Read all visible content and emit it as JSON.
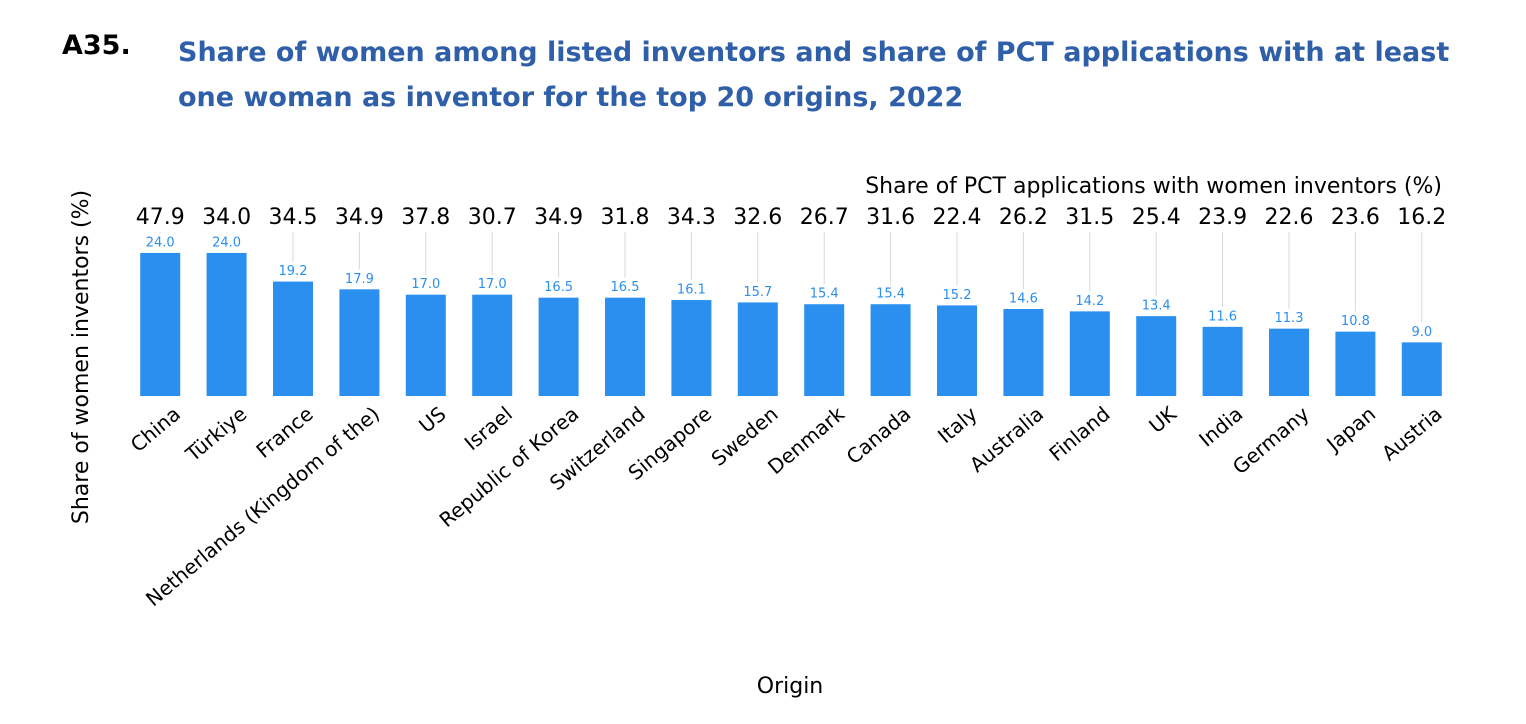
{
  "chart_data": {
    "type": "bar",
    "figure_id": "A35.",
    "title": "Share of women among listed inventors and share of PCT applications with at least one woman as inventor for the top 20 origins, 2022",
    "x_label": "Origin",
    "categories": [
      "China",
      "Türkiye",
      "France",
      "Netherlands (Kingdom of the)",
      "US",
      "Israel",
      "Republic of Korea",
      "Switzerland",
      "Singapore",
      "Sweden",
      "Denmark",
      "Canada",
      "Italy",
      "Australia",
      "Finland",
      "UK",
      "India",
      "Germany",
      "Japan",
      "Austria"
    ],
    "series": [
      {
        "name": "Share of women inventors (%)",
        "color": "#2b8fef",
        "values": [
          24.0,
          24.0,
          19.2,
          17.9,
          17.0,
          17.0,
          16.5,
          16.5,
          16.1,
          15.7,
          15.4,
          15.4,
          15.2,
          14.6,
          14.2,
          13.4,
          11.6,
          11.3,
          10.8,
          9.0
        ],
        "value_labels": [
          "24.0",
          "24.0",
          "19.2",
          "17.9",
          "17.0",
          "17.0",
          "16.5",
          "16.5",
          "16.1",
          "15.7",
          "15.4",
          "15.4",
          "15.2",
          "14.6",
          "14.2",
          "13.4",
          "11.6",
          "11.3",
          "10.8",
          "9.0"
        ]
      },
      {
        "name": "Share of PCT applications with women inventors (%)",
        "color": "#000000",
        "values": [
          47.9,
          34.0,
          34.5,
          34.9,
          37.8,
          30.7,
          34.9,
          31.8,
          34.3,
          32.6,
          26.7,
          31.6,
          22.4,
          26.2,
          31.5,
          25.4,
          23.9,
          22.6,
          23.6,
          16.2
        ],
        "value_labels": [
          "47.9",
          "34.0",
          "34.5",
          "34.9",
          "37.8",
          "30.7",
          "34.9",
          "31.8",
          "34.3",
          "32.6",
          "26.7",
          "31.6",
          "22.4",
          "26.2",
          "31.5",
          "25.4",
          "23.9",
          "22.6",
          "23.6",
          "16.2"
        ]
      }
    ],
    "ylim": [
      0,
      25
    ]
  }
}
